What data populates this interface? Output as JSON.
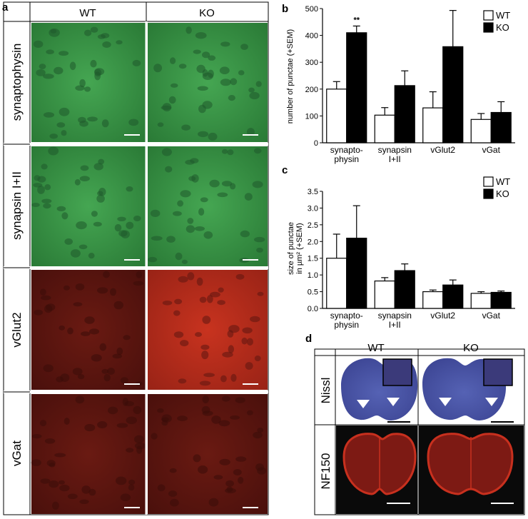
{
  "panels": {
    "a": {
      "letter": "a",
      "columns": [
        "WT",
        "KO"
      ],
      "rows": [
        "synaptophysin",
        "synapsin I+II",
        "vGlut2",
        "vGat"
      ],
      "colors": {
        "green_bg": "#2f8a3c",
        "green_light": "#4fb25a",
        "red_dim_bg": "#5a1410",
        "red_bright_bg": "#b22a1c",
        "cell_dark_green": "#1d4a28",
        "cell_dark_red": "#3a0c0a"
      }
    },
    "d": {
      "letter": "d",
      "columns": [
        "WT",
        "KO"
      ],
      "rows": [
        "Nissl",
        "NF150"
      ],
      "colors": {
        "nissl": "#4a55a8",
        "nf150": "#b3261c",
        "nf_bg": "#0a0a0a"
      }
    }
  },
  "chart_data": [
    {
      "panel": "b",
      "type": "bar",
      "categories": [
        "synapto-\nphysin",
        "synapsin\nI+II",
        "vGlut2",
        "vGat"
      ],
      "series": [
        {
          "name": "WT",
          "values": [
            200,
            103,
            130,
            87
          ],
          "errors": [
            28,
            28,
            60,
            22
          ],
          "color": "#ffffff"
        },
        {
          "name": "KO",
          "values": [
            410,
            213,
            358,
            113
          ],
          "errors": [
            25,
            55,
            135,
            40
          ],
          "color": "#000000"
        }
      ],
      "ylabel": "number of punctae (+SEM)",
      "ylim": [
        0,
        500
      ],
      "yticks": [
        0,
        100,
        200,
        300,
        400,
        500
      ],
      "annotation": {
        "text": "**",
        "category_index": 0,
        "series": "KO"
      },
      "legend": "top-right"
    },
    {
      "panel": "c",
      "type": "bar",
      "categories": [
        "synapto-\nphysin",
        "synapsin\nI+II",
        "vGlut2",
        "vGat"
      ],
      "series": [
        {
          "name": "WT",
          "values": [
            1.5,
            0.82,
            0.5,
            0.45
          ],
          "errors": [
            0.72,
            0.1,
            0.05,
            0.05
          ],
          "color": "#ffffff"
        },
        {
          "name": "KO",
          "values": [
            2.1,
            1.13,
            0.7,
            0.48
          ],
          "errors": [
            0.97,
            0.2,
            0.15,
            0.04
          ],
          "color": "#000000"
        }
      ],
      "ylabel_line1": "size of punctae",
      "ylabel_line2": "in µm² (+SEM)",
      "ylim": [
        0,
        3.5
      ],
      "yticks": [
        "0.0",
        "0.5",
        "1.0",
        "1.5",
        "2.0",
        "2.5",
        "3.0",
        "3.5"
      ],
      "legend": "top-right"
    }
  ],
  "letters": {
    "b": "b",
    "c": "c"
  }
}
